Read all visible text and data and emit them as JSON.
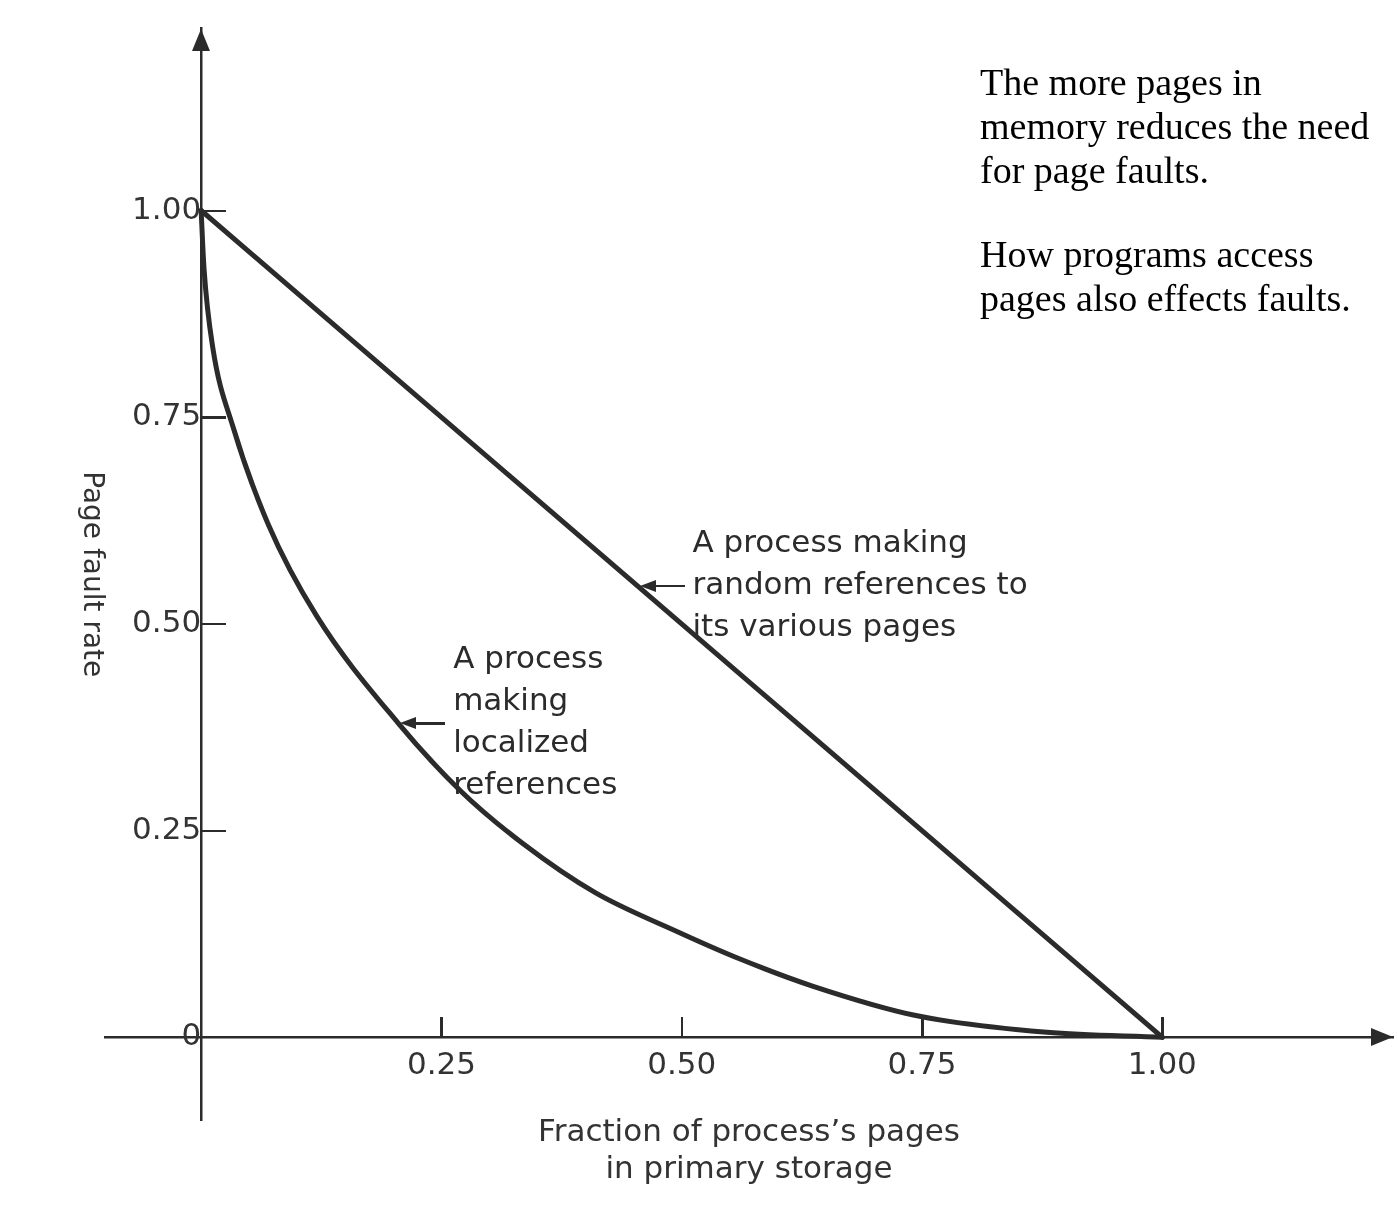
{
  "chart_data": {
    "type": "line",
    "xlabel": "Fraction of process’s pages\nin primary storage",
    "ylabel": "Page fault rate",
    "xlim": [
      -0.1,
      1.24
    ],
    "ylim": [
      -0.1,
      1.22
    ],
    "xticks": [
      {
        "value": 0.25,
        "label": "0.25"
      },
      {
        "value": 0.5,
        "label": "0.50"
      },
      {
        "value": 0.75,
        "label": "0.75"
      },
      {
        "value": 1,
        "label": "1.00"
      }
    ],
    "yticks": [
      {
        "value": 0,
        "label": "0"
      },
      {
        "value": 0.25,
        "label": "0.25"
      },
      {
        "value": 0.5,
        "label": "0.50"
      },
      {
        "value": 0.75,
        "label": "0.75"
      },
      {
        "value": 1,
        "label": "1.00"
      }
    ],
    "grid": false,
    "legend": false,
    "marker": "none",
    "line_style": "solid",
    "series": [
      {
        "color": "#2b2b2b",
        "x": [
          0,
          1
        ],
        "values": [
          1,
          0
        ]
      },
      {
        "color": "#2b2b2b",
        "x": [
          0,
          0.003,
          0.012,
          0.033,
          0.07,
          0.12,
          0.205,
          0.27,
          0.334,
          0.41,
          0.495,
          0.56,
          0.636,
          0.745,
          0.88,
          1
        ],
        "values": [
          1,
          0.93,
          0.835,
          0.739,
          0.62,
          0.51,
          0.38,
          0.298,
          0.235,
          0.175,
          0.128,
          0.095,
          0.062,
          0.026,
          0.006,
          0
        ]
      }
    ],
    "annotations": [
      {
        "text": "A process making\nrandom references to\nits various pages",
        "x": 0.454,
        "y": 0.546
      },
      {
        "text": "A process\nmaking\nlocalized\nreferences",
        "x": 0.205,
        "y": 0.38
      },
      "The more pages in memory reduces the need for page faults.",
      "How programs access pages also effects faults."
    ]
  }
}
